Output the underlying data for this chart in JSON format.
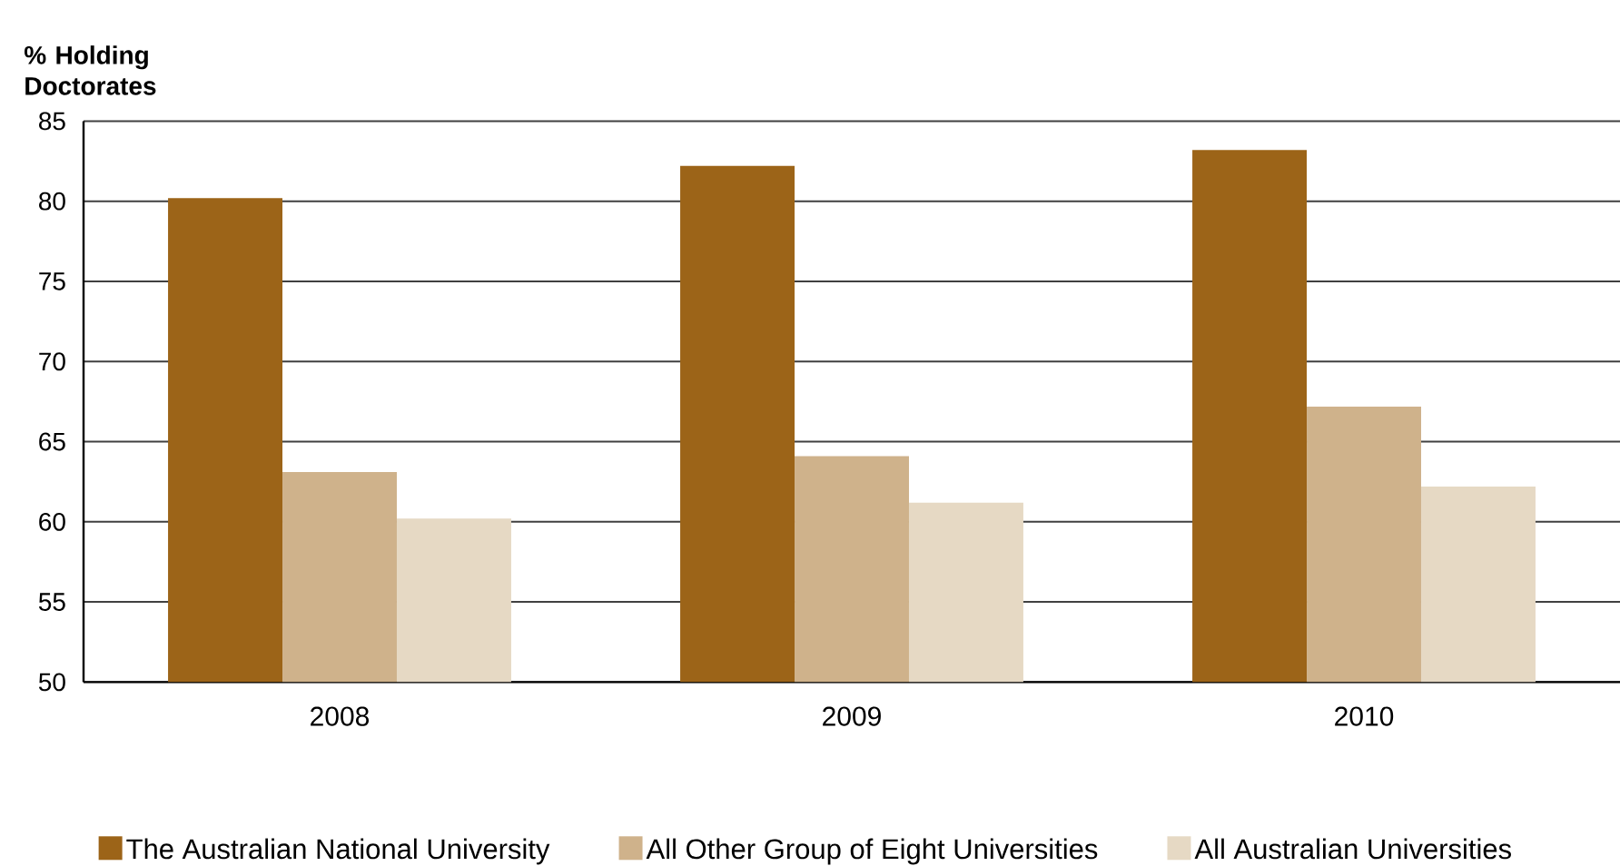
{
  "chart_data": {
    "type": "bar",
    "ylabel": "% Holding Doctorates",
    "categories": [
      "2008",
      "2009",
      "2010"
    ],
    "series": [
      {
        "name": "The Australian National University",
        "color": "#9c6418",
        "values": [
          80.2,
          82.2,
          83.2
        ]
      },
      {
        "name": "All Other Group of Eight Universities",
        "color": "#cfb28b",
        "values": [
          63.1,
          64.1,
          67.2
        ]
      },
      {
        "name": "All Australian Universities",
        "color": "#e6d9c4",
        "values": [
          60.2,
          61.2,
          62.2
        ]
      }
    ],
    "ylim": [
      50,
      85
    ],
    "yticks": [
      50,
      55,
      60,
      65,
      70,
      75,
      80,
      85
    ],
    "grid": "y",
    "legend": "bottom"
  }
}
